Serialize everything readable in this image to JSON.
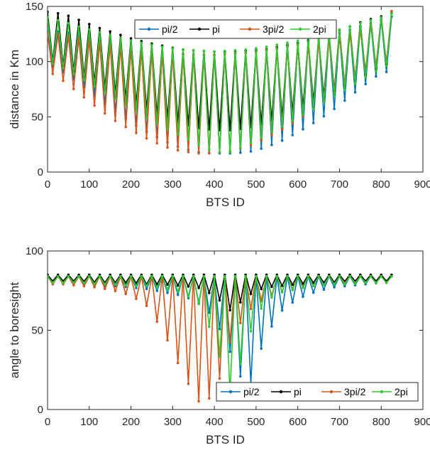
{
  "chart_data": [
    {
      "type": "line",
      "xlabel": "BTS ID",
      "ylabel": "distance in Km",
      "xlim": [
        0,
        900
      ],
      "ylim": [
        0,
        150
      ],
      "xticks": [
        0,
        100,
        200,
        300,
        400,
        500,
        600,
        700,
        800,
        900
      ],
      "yticks": [
        0,
        50,
        100,
        150
      ],
      "grid": false,
      "legend": {
        "position": "top-center",
        "orientation": "horizontal"
      },
      "x": [
        0,
        40,
        80,
        120,
        160,
        200,
        240,
        280,
        320,
        360,
        400,
        440,
        480,
        520,
        560,
        600,
        640,
        680,
        720,
        760,
        800,
        835
      ],
      "series": [
        {
          "name": "pi/2",
          "color": "#0072BD",
          "peaks": [
            128,
            127,
            124,
            120,
            116,
            113,
            110,
            108,
            107,
            106,
            106,
            107,
            108,
            110,
            113,
            116,
            120,
            124,
            128,
            133,
            138,
            142
          ],
          "troughs": [
            98,
            90,
            79,
            67,
            55,
            45,
            36,
            28,
            22,
            18,
            17,
            17,
            18,
            22,
            28,
            36,
            45,
            55,
            67,
            79,
            90,
            92
          ]
        },
        {
          "name": "pi",
          "color": "#000000",
          "peaks": [
            145,
            143,
            137,
            131,
            126,
            121,
            117,
            114,
            111,
            110,
            109,
            109,
            110,
            111,
            114,
            117,
            121,
            126,
            131,
            137,
            141,
            145
          ],
          "troughs": [
            102,
            96,
            88,
            80,
            72,
            64,
            56,
            49,
            44,
            40,
            38,
            38,
            40,
            44,
            49,
            56,
            64,
            72,
            80,
            88,
            96,
            100
          ]
        },
        {
          "name": "3pi/2",
          "color": "#D95319",
          "peaks": [
            126,
            124,
            121,
            118,
            115,
            112,
            110,
            108,
            107,
            106,
            106,
            107,
            108,
            110,
            112,
            115,
            118,
            121,
            124,
            130,
            140,
            148
          ],
          "troughs": [
            92,
            82,
            70,
            58,
            47,
            38,
            30,
            23,
            19,
            17,
            17,
            19,
            23,
            30,
            38,
            47,
            58,
            70,
            82,
            92,
            98,
            102
          ]
        },
        {
          "name": "2pi",
          "color": "#2CCB2C",
          "peaks": [
            140,
            136,
            131,
            127,
            123,
            119,
            116,
            113,
            111,
            110,
            109,
            110,
            111,
            113,
            116,
            119,
            123,
            127,
            131,
            136,
            140,
            145
          ],
          "troughs": [
            100,
            94,
            85,
            76,
            67,
            58,
            49,
            41,
            33,
            25,
            18,
            18,
            25,
            33,
            41,
            49,
            58,
            67,
            76,
            85,
            94,
            100
          ]
        }
      ]
    },
    {
      "type": "line",
      "xlabel": "BTS ID",
      "ylabel": "angle to boresight",
      "xlim": [
        0,
        900
      ],
      "ylim": [
        0,
        100
      ],
      "xticks": [
        0,
        100,
        200,
        300,
        400,
        500,
        600,
        700,
        800,
        900
      ],
      "yticks": [
        0,
        50,
        100
      ],
      "grid": false,
      "legend": {
        "position": "bottom-right",
        "orientation": "horizontal"
      },
      "x": [
        0,
        40,
        80,
        120,
        160,
        200,
        240,
        280,
        320,
        360,
        400,
        440,
        480,
        520,
        560,
        600,
        640,
        680,
        720,
        760,
        800,
        835
      ],
      "series": [
        {
          "name": "pi/2",
          "color": "#0072BD",
          "peaks": [
            84,
            84,
            84,
            84,
            84,
            84,
            84,
            84,
            84,
            84,
            84,
            84,
            84,
            84,
            84,
            84,
            84,
            84,
            84,
            84,
            84,
            84
          ],
          "troughs": [
            80,
            80,
            79,
            78,
            78,
            77,
            76,
            74,
            72,
            68,
            58,
            35,
            10,
            45,
            62,
            70,
            74,
            77,
            78,
            79,
            80,
            80
          ]
        },
        {
          "name": "pi",
          "color": "#000000",
          "peaks": [
            85,
            85,
            85,
            85,
            85,
            85,
            85,
            85,
            85,
            85,
            85,
            85,
            85,
            85,
            85,
            85,
            85,
            85,
            85,
            85,
            85,
            85
          ],
          "troughs": [
            81,
            81,
            81,
            80,
            80,
            80,
            79,
            79,
            78,
            77,
            72,
            62,
            72,
            77,
            78,
            79,
            80,
            80,
            81,
            81,
            81,
            81
          ]
        },
        {
          "name": "3pi/2",
          "color": "#D95319",
          "peaks": [
            84,
            84,
            84,
            84,
            84,
            84,
            84,
            84,
            84,
            84,
            84,
            84,
            84,
            84,
            84,
            84,
            84,
            84,
            84,
            84,
            84,
            84
          ],
          "troughs": [
            79,
            79,
            78,
            77,
            75,
            72,
            65,
            48,
            25,
            5,
            8,
            45,
            62,
            70,
            74,
            77,
            78,
            79,
            80,
            80,
            80,
            80
          ]
        },
        {
          "name": "2pi",
          "color": "#2CCB2C",
          "peaks": [
            84,
            84,
            84,
            84,
            84,
            84,
            84,
            84,
            84,
            84,
            84,
            84,
            84,
            84,
            84,
            84,
            84,
            84,
            84,
            84,
            84,
            84
          ],
          "troughs": [
            80,
            80,
            80,
            79,
            79,
            78,
            78,
            76,
            74,
            68,
            45,
            8,
            45,
            68,
            74,
            76,
            78,
            79,
            79,
            80,
            80,
            80
          ]
        }
      ]
    }
  ]
}
